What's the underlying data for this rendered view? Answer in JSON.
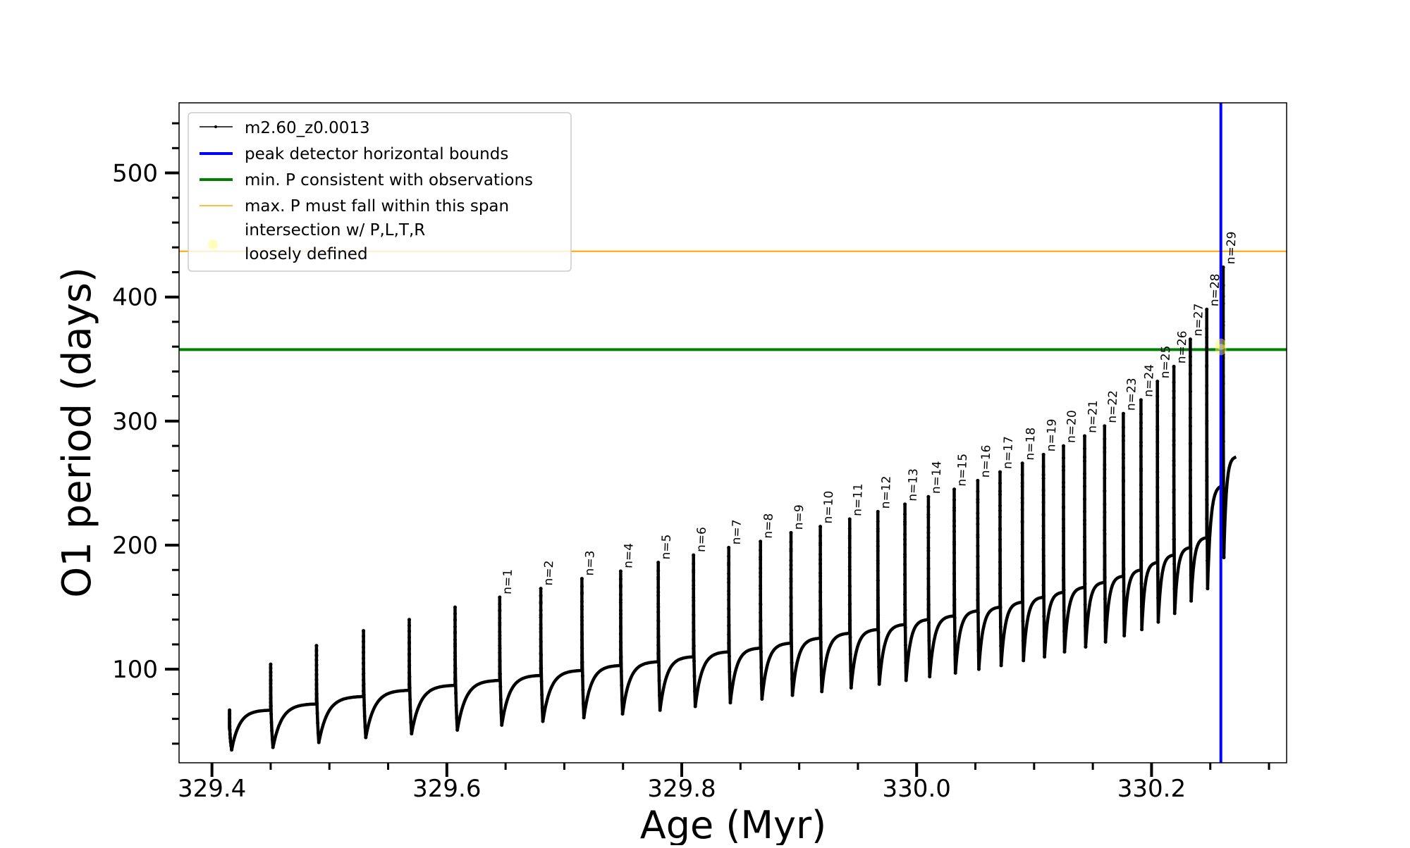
{
  "chart_data": {
    "type": "line",
    "title": "",
    "xlabel": "Age (Myr)",
    "ylabel": "O1 period (days)",
    "xlim": [
      329.372,
      330.315
    ],
    "ylim": [
      24.6,
      556.5
    ],
    "xticks": [
      329.4,
      329.6,
      329.8,
      330.0,
      330.2
    ],
    "xtick_labels": [
      "329.4",
      "329.6",
      "329.8",
      "330.0",
      "330.2"
    ],
    "x_minor_step": 0.05,
    "yticks": [
      100,
      200,
      300,
      400,
      500
    ],
    "ytick_labels": [
      "100",
      "200",
      "300",
      "400",
      "500"
    ],
    "y_minor_step": 20,
    "grid": false,
    "legend_placement": "upper-left",
    "legend": [
      {
        "label": "m2.60_z0.0013",
        "style": "line-dot",
        "color": "#000000"
      },
      {
        "label": "peak detector horizontal bounds",
        "style": "thick-line",
        "color": "#0000ff"
      },
      {
        "label": "min. P consistent with observations",
        "style": "thick-line",
        "color": "#008000"
      },
      {
        "label": "max. P must fall within this span",
        "style": "thin-line",
        "color": "#ffa500"
      },
      {
        "label": "intersection w/ P,L,T,R",
        "label2": "loosely defined",
        "style": "marker",
        "color": "#ffffaa"
      }
    ],
    "series": [
      {
        "name": "m2.60_z0.0013",
        "color": "#000000",
        "pulse_ages": [
          329.415,
          329.45,
          329.489,
          329.529,
          329.568,
          329.607,
          329.645,
          329.68,
          329.715,
          329.748,
          329.78,
          329.81,
          329.84,
          329.867,
          329.893,
          329.918,
          329.943,
          329.967,
          329.99,
          330.01,
          330.032,
          330.052,
          330.071,
          330.09,
          330.108,
          330.125,
          330.143,
          330.16,
          330.176,
          330.191,
          330.205,
          330.219,
          330.233,
          330.247,
          330.261
        ],
        "pre_pulse_period": [
          52,
          67,
          72,
          78,
          83,
          87,
          91,
          95,
          99,
          103,
          106,
          110,
          114,
          117,
          121,
          125,
          129,
          132,
          136,
          140,
          143,
          147,
          150,
          154,
          158,
          162,
          166,
          170,
          175,
          180,
          186,
          192,
          198,
          206,
          248
        ],
        "peak_period": [
          67,
          104,
          119,
          131,
          140,
          150,
          158,
          165,
          173,
          179,
          186,
          192,
          198,
          203,
          210,
          215,
          221,
          227,
          233,
          239,
          245,
          252,
          259,
          266,
          273,
          280,
          288,
          296,
          306,
          317,
          332,
          344,
          366,
          390,
          424
        ],
        "trough_period": [
          35,
          37,
          41,
          45,
          48,
          51,
          55,
          58,
          61,
          64,
          67,
          70,
          73,
          76,
          79,
          82,
          85,
          88,
          91,
          94,
          97,
          100,
          103,
          107,
          110,
          114,
          118,
          122,
          127,
          132,
          138,
          145,
          155,
          165,
          190
        ],
        "end_point": {
          "age": 330.272,
          "period": 271
        }
      }
    ],
    "pulse_labels": [
      "n=1",
      "n=2",
      "n=3",
      "n=4",
      "n=5",
      "n=6",
      "n=7",
      "n=8",
      "n=9",
      "n=10",
      "n=11",
      "n=12",
      "n=13",
      "n=14",
      "n=15",
      "n=16",
      "n=17",
      "n=18",
      "n=19",
      "n=20",
      "n=21",
      "n=22",
      "n=23",
      "n=24",
      "n=25",
      "n=26",
      "n=27",
      "n=28",
      "n=29"
    ],
    "pulse_label_first_index": 6,
    "vertical_lines": [
      {
        "age": 330.259,
        "color": "#0000ff"
      }
    ],
    "horizontal_lines": [
      {
        "period": 357.6,
        "color": "#008000"
      },
      {
        "period": 436.9,
        "color": "#ffa500"
      }
    ],
    "intersection_points": [
      {
        "age": 330.259,
        "period": 357.6
      },
      {
        "age": 330.259,
        "period": 362
      }
    ]
  }
}
